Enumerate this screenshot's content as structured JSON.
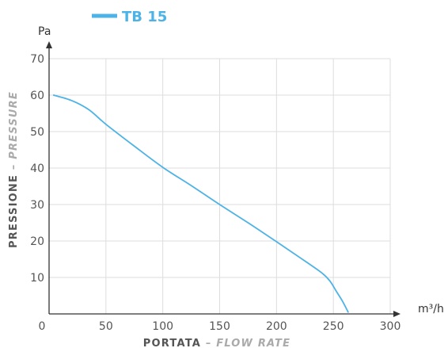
{
  "chart_data": {
    "type": "line",
    "legend": {
      "placement": "top-left"
    },
    "series": [
      {
        "name": "TB 15",
        "color": "#4db3e6",
        "points": [
          [
            4,
            60
          ],
          [
            20,
            58.5
          ],
          [
            35,
            56
          ],
          [
            50,
            52
          ],
          [
            75,
            46
          ],
          [
            100,
            40.2
          ],
          [
            125,
            35.2
          ],
          [
            150,
            30
          ],
          [
            175,
            25
          ],
          [
            200,
            19.8
          ],
          [
            225,
            14.5
          ],
          [
            240,
            11.2
          ],
          [
            247,
            9
          ],
          [
            253,
            6
          ],
          [
            258,
            3.5
          ],
          [
            263,
            0.5
          ]
        ]
      }
    ],
    "x_axis": {
      "label_main": "PORTATA",
      "label_sep": " – ",
      "label_alt": "FLOW RATE",
      "unit": "m³/h",
      "range": [
        0,
        300
      ],
      "ticks": [
        "0",
        "50",
        "100",
        "150",
        "200",
        "250",
        "300"
      ],
      "tick_values": [
        0,
        50,
        100,
        150,
        200,
        250,
        300
      ]
    },
    "y_axis": {
      "label_main": "PRESSIONE",
      "label_sep": " – ",
      "label_alt": "PRESSURE",
      "unit": "Pa",
      "range": [
        0,
        70
      ],
      "ticks": [
        "10",
        "20",
        "30",
        "40",
        "50",
        "60",
        "70"
      ],
      "tick_values": [
        10,
        20,
        30,
        40,
        50,
        60,
        70
      ]
    },
    "grid": true,
    "colors": {
      "axis": "#333333",
      "grid": "#dddddd",
      "label_main": "#555555",
      "label_alt": "#aaaaaa"
    }
  }
}
